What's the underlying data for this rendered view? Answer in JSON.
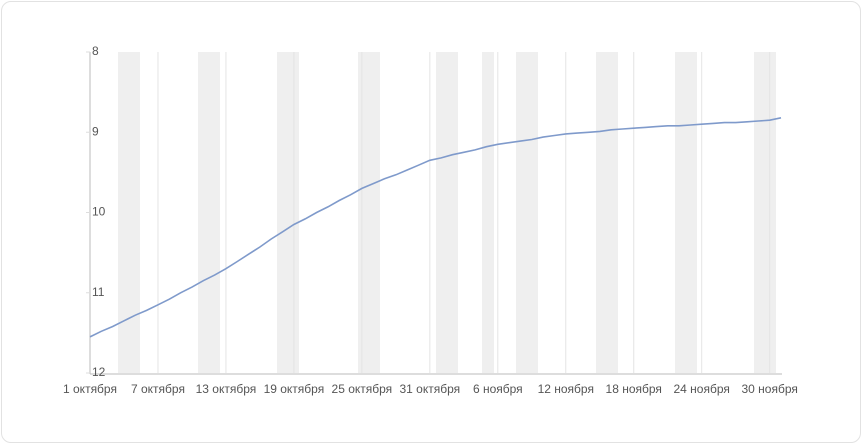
{
  "chart_data": {
    "type": "line",
    "categories": [
      "1 октября",
      null,
      null,
      null,
      null,
      null,
      "7 октября",
      null,
      null,
      null,
      null,
      null,
      "13 октября",
      null,
      null,
      null,
      null,
      null,
      "19 октября",
      null,
      null,
      null,
      null,
      null,
      "25 октября",
      null,
      null,
      null,
      null,
      null,
      "31 октября",
      null,
      null,
      null,
      null,
      null,
      "6 ноября",
      null,
      null,
      null,
      null,
      null,
      "12 ноября",
      null,
      null,
      null,
      null,
      null,
      "18 ноября",
      null,
      null,
      null,
      null,
      null,
      "24 ноября",
      null,
      null,
      null,
      null,
      null,
      "30 ноября",
      null
    ],
    "series": [
      {
        "color": "#7f9acb",
        "values": [
          11.55,
          11.48,
          11.42,
          11.35,
          11.28,
          11.22,
          11.15,
          11.08,
          11.0,
          10.93,
          10.85,
          10.78,
          10.7,
          10.61,
          10.52,
          10.43,
          10.33,
          10.24,
          10.15,
          10.08,
          10.0,
          9.93,
          9.85,
          9.78,
          9.7,
          9.64,
          9.58,
          9.53,
          9.47,
          9.41,
          9.35,
          9.32,
          9.28,
          9.25,
          9.22,
          9.18,
          9.15,
          9.13,
          9.11,
          9.09,
          9.06,
          9.04,
          9.02,
          9.01,
          9.0,
          8.99,
          8.97,
          8.96,
          8.95,
          8.94,
          8.93,
          8.92,
          8.92,
          8.91,
          8.9,
          8.89,
          8.88,
          8.88,
          8.87,
          8.86,
          8.85,
          8.82
        ]
      }
    ],
    "ylim": [
      12,
      8
    ],
    "yticks": [
      8,
      9,
      10,
      11,
      12
    ],
    "grid": true
  }
}
